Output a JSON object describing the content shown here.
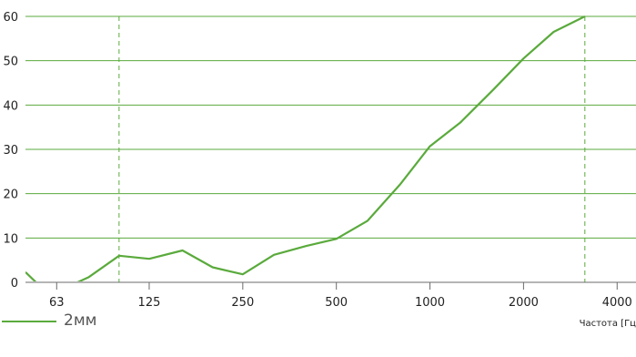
{
  "chart_data": {
    "type": "line",
    "x_scale": "log2",
    "x_ticks": [
      {
        "value": 63,
        "label": "63"
      },
      {
        "value": 125,
        "label": "125"
      },
      {
        "value": 250,
        "label": "250"
      },
      {
        "value": 500,
        "label": "500"
      },
      {
        "value": 1000,
        "label": "1000"
      },
      {
        "value": 2000,
        "label": "2000"
      },
      {
        "value": 4000,
        "label": "4000"
      }
    ],
    "y_ticks": [
      0,
      10,
      20,
      30,
      40,
      50,
      60
    ],
    "ylim": [
      0,
      60
    ],
    "xlim": [
      50,
      4600
    ],
    "xlabel": "Частота [Гц",
    "ylabel": "",
    "grid": "horizontal",
    "reference_lines_x": [
      100,
      3150
    ],
    "series": [
      {
        "name": "2мм",
        "color": "#5aaa3c",
        "x": [
          50,
          55,
          63,
          71,
          80,
          100,
          125,
          160,
          200,
          250,
          315,
          400,
          500,
          630,
          800,
          1000,
          1250,
          1600,
          2000,
          2500,
          3150
        ],
        "y": [
          2.3,
          -0.5,
          -1.5,
          -0.5,
          1.2,
          6.0,
          5.3,
          7.2,
          3.4,
          1.8,
          6.2,
          8.2,
          9.8,
          13.9,
          22.0,
          30.7,
          36.0,
          43.5,
          50.5,
          56.5,
          60.0
        ]
      }
    ]
  },
  "colors": {
    "grid": "#5aaa3c",
    "line": "#5aaa3c",
    "axis": "#6b6b6b"
  },
  "legend": {
    "label": "2мм"
  }
}
